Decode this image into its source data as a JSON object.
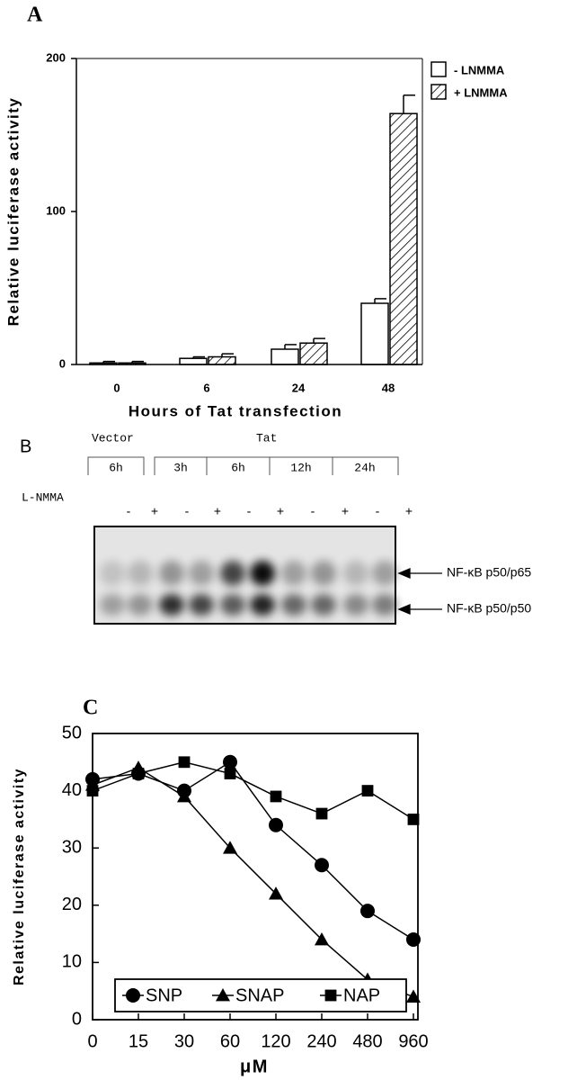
{
  "chart_data": [
    {
      "type": "bar",
      "panel": "A",
      "ylabel": "Relative luciferase activity",
      "xlabel": "Hours of Tat transfection",
      "categories": [
        "0",
        "6",
        "24",
        "48"
      ],
      "series": [
        {
          "name": "- LNMMA",
          "color": "#ffffff",
          "values": [
            1,
            4,
            10,
            40
          ],
          "errors": [
            1,
            1,
            3,
            3
          ]
        },
        {
          "name": "+ LNMMA",
          "color": "#ffffff",
          "hatch": true,
          "values": [
            1,
            5,
            14,
            164
          ],
          "errors": [
            1,
            2,
            3,
            12
          ]
        }
      ],
      "ylim": [
        0,
        200
      ],
      "yticks": [
        0,
        100,
        200
      ],
      "legend": "right"
    },
    {
      "type": "line",
      "panel": "C",
      "ylabel": "Relative luciferase activity",
      "xlabel": "μM",
      "categories": [
        "0",
        "15",
        "30",
        "60",
        "120",
        "240",
        "480",
        "960"
      ],
      "series": [
        {
          "name": "SNP",
          "marker": "circle",
          "color": "#000000",
          "values": [
            42,
            43,
            40,
            45,
            34,
            27,
            19,
            14
          ]
        },
        {
          "name": "SNAP",
          "marker": "triangle",
          "color": "#000000",
          "values": [
            41,
            44,
            39,
            30,
            22,
            14,
            7,
            4
          ]
        },
        {
          "name": "NAP",
          "marker": "square",
          "color": "#000000",
          "values": [
            40,
            43,
            45,
            43,
            39,
            36,
            40,
            35
          ]
        }
      ],
      "ylim": [
        0,
        50
      ],
      "yticks": [
        0,
        10,
        20,
        30,
        40,
        50
      ],
      "legend": "lower left"
    }
  ],
  "gel": {
    "panel": "B",
    "groups": [
      "Vector",
      "Tat"
    ],
    "times": [
      "6h",
      "3h",
      "6h",
      "12h",
      "24h"
    ],
    "treatment": "L-NMMA",
    "signs": [
      "-",
      "+",
      "-",
      "+",
      "-",
      "+",
      "-",
      "+",
      "-",
      "+"
    ],
    "bands": [
      "NF-κB p50/p65",
      "NF-κB p50/p50"
    ]
  }
}
